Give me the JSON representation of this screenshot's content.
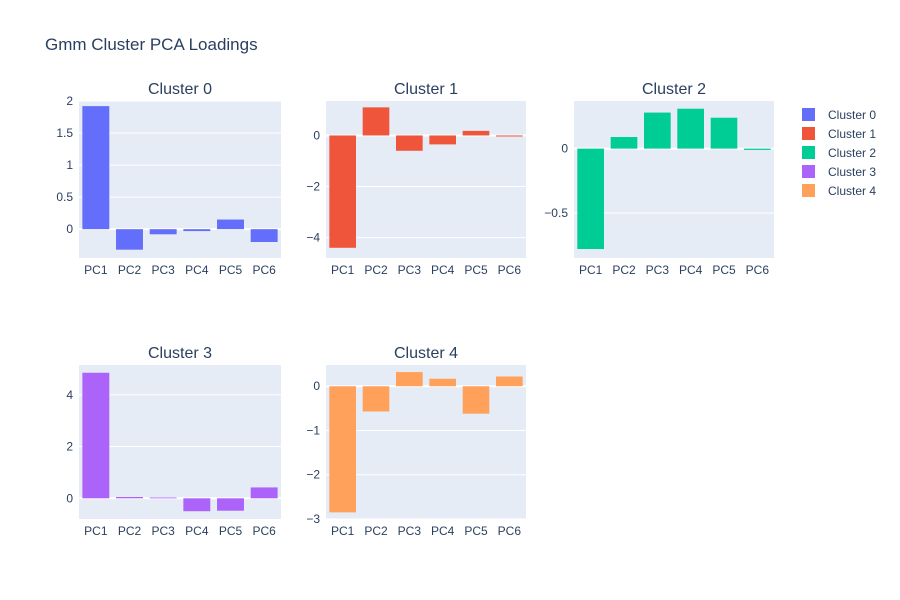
{
  "title": "Gmm Cluster PCA Loadings",
  "colors": {
    "plot_bg": "#e5ecf6",
    "grid": "#ffffff",
    "text": "#2a3f5f"
  },
  "legend": {
    "placement": "right",
    "items": [
      {
        "label": "Cluster 0",
        "color": "#636efa"
      },
      {
        "label": "Cluster 1",
        "color": "#ef553b"
      },
      {
        "label": "Cluster 2",
        "color": "#00cc96"
      },
      {
        "label": "Cluster 3",
        "color": "#ab63fa"
      },
      {
        "label": "Cluster 4",
        "color": "#ffa15a"
      }
    ]
  },
  "chart_data": [
    {
      "type": "bar",
      "title": "Cluster 0",
      "series_name": "Cluster 0",
      "color": "#636efa",
      "categories": [
        "PC1",
        "PC2",
        "PC3",
        "PC4",
        "PC5",
        "PC6"
      ],
      "values": [
        1.92,
        -0.32,
        -0.08,
        -0.03,
        0.15,
        -0.2
      ],
      "ylim": [
        -0.45,
        2.0
      ],
      "yticks": [
        0,
        0.5,
        1,
        1.5,
        2
      ],
      "ytick_labels": [
        "0",
        "0.5",
        "1",
        "1.5",
        "2"
      ],
      "grid": true
    },
    {
      "type": "bar",
      "title": "Cluster 1",
      "series_name": "Cluster 1",
      "color": "#ef553b",
      "categories": [
        "PC1",
        "PC2",
        "PC3",
        "PC4",
        "PC5",
        "PC6"
      ],
      "values": [
        -4.4,
        1.1,
        -0.6,
        -0.35,
        0.18,
        -0.04
      ],
      "ylim": [
        -4.8,
        1.35
      ],
      "yticks": [
        -4,
        -2,
        0
      ],
      "ytick_labels": [
        "−4",
        "−2",
        "0"
      ],
      "grid": true
    },
    {
      "type": "bar",
      "title": "Cluster 2",
      "series_name": "Cluster 2",
      "color": "#00cc96",
      "categories": [
        "PC1",
        "PC2",
        "PC3",
        "PC4",
        "PC5",
        "PC6"
      ],
      "values": [
        -0.78,
        0.09,
        0.28,
        0.31,
        0.24,
        -0.01
      ],
      "ylim": [
        -0.85,
        0.37
      ],
      "yticks": [
        -0.5,
        0
      ],
      "ytick_labels": [
        "−0.5",
        "0"
      ],
      "grid": true
    },
    {
      "type": "bar",
      "title": "Cluster 3",
      "series_name": "Cluster 3",
      "color": "#ab63fa",
      "categories": [
        "PC1",
        "PC2",
        "PC3",
        "PC4",
        "PC5",
        "PC6"
      ],
      "values": [
        4.85,
        0.05,
        0.03,
        -0.5,
        -0.48,
        0.42
      ],
      "ylim": [
        -0.8,
        5.15
      ],
      "yticks": [
        0,
        2,
        4
      ],
      "ytick_labels": [
        "0",
        "2",
        "4"
      ],
      "grid": true
    },
    {
      "type": "bar",
      "title": "Cluster 4",
      "series_name": "Cluster 4",
      "color": "#ffa15a",
      "categories": [
        "PC1",
        "PC2",
        "PC3",
        "PC4",
        "PC5",
        "PC6"
      ],
      "values": [
        -2.85,
        -0.57,
        0.32,
        0.17,
        -0.62,
        0.22
      ],
      "ylim": [
        -3.0,
        0.48
      ],
      "yticks": [
        -3,
        -2,
        -1,
        0
      ],
      "ytick_labels": [
        "−3",
        "−2",
        "−1",
        "0"
      ],
      "grid": true
    }
  ]
}
